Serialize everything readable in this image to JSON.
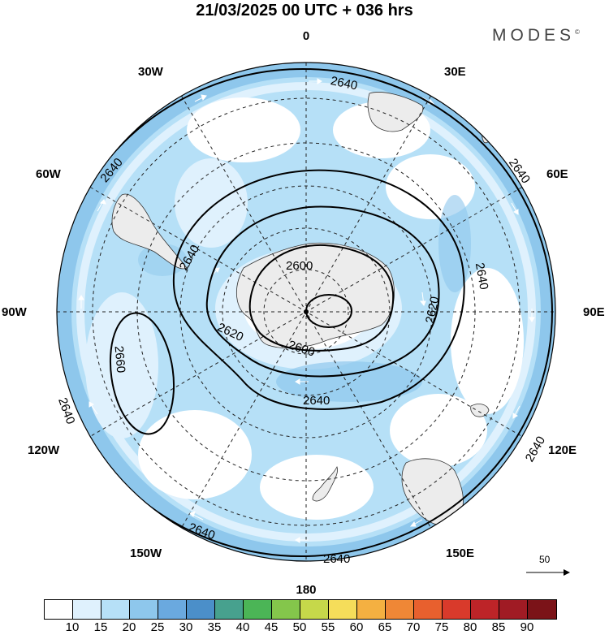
{
  "title": "21/03/2025  00 UTC  + 036 hrs",
  "brand": "MODES",
  "brand_mark": "©",
  "longitude_labels": {
    "n": "0",
    "s": "180",
    "e": "90E",
    "w": "90W",
    "ne30": "30E",
    "ne60": "60E",
    "nw30": "30W",
    "nw60": "60W",
    "se120": "120E",
    "se150": "150E",
    "sw120": "120W",
    "sw150": "150W"
  },
  "contour_labels": {
    "a": "2640",
    "b": "2640",
    "c": "2640",
    "d": "2640",
    "e": "2640",
    "f": "2640",
    "g": "2640",
    "h": "2640",
    "i": "2640",
    "j": "2660",
    "k": "2600",
    "l": "2600",
    "m": "2620",
    "n": "2620",
    "o": "2640"
  },
  "reference_vector": "50",
  "colorbar": {
    "labels": [
      "10",
      "15",
      "20",
      "25",
      "30",
      "35",
      "40",
      "45",
      "50",
      "55",
      "60",
      "65",
      "70",
      "75",
      "80",
      "85",
      "90"
    ],
    "colors": [
      "#ffffff",
      "#dff1fd",
      "#b6e0f7",
      "#8ec7ec",
      "#6aa9df",
      "#4b8fc9",
      "#47a18e",
      "#4bb556",
      "#84c64b",
      "#c6d84a",
      "#f5dd5a",
      "#f4b041",
      "#ef8736",
      "#e8602e",
      "#d93a2b",
      "#bd2428",
      "#a01b24",
      "#7b1318"
    ]
  }
}
